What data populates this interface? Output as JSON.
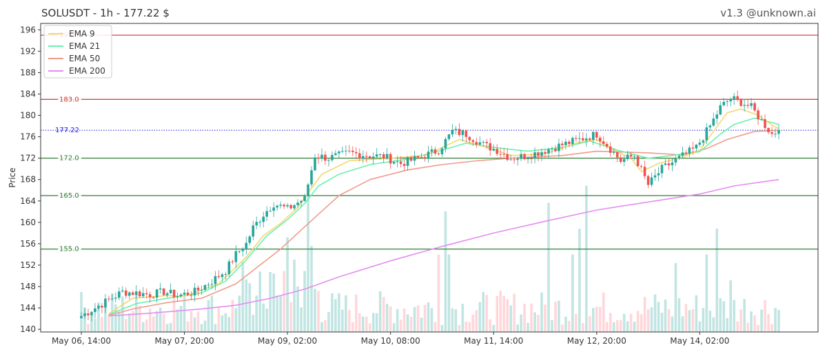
{
  "header": {
    "title": "SOLUSDT - 1h - 177.22 $",
    "credit": "v1.3 @unknown.ai"
  },
  "colors": {
    "up": "#26a69a",
    "down": "#ef5350",
    "vol_up": "#b2dfdb",
    "vol_down": "#ffcdd2",
    "ema9": "#f5d76e",
    "ema21": "#69f0ae",
    "ema50": "#ef9a8a",
    "ema200": "#e48cf0",
    "resistance": "#d32f2f",
    "support": "#2e7d32",
    "current": "#1a1ad6"
  },
  "chart_data": {
    "type": "candlestick",
    "title": "SOLUSDT - 1h - 177.22 $",
    "ylabel": "Price",
    "xlabel": "",
    "ylim": [
      139.5,
      197.2
    ],
    "y_ticks": [
      140,
      144,
      148,
      152,
      156,
      160,
      164,
      168,
      172,
      176,
      180,
      184,
      188,
      192,
      196
    ],
    "x_ticks": [
      {
        "bar": 0,
        "label": "May 06, 14:00"
      },
      {
        "bar": 30,
        "label": "May 07, 20:00"
      },
      {
        "bar": 60,
        "label": "May 09, 02:00"
      },
      {
        "bar": 90,
        "label": "May 10, 08:00"
      },
      {
        "bar": 120,
        "label": "May 11, 14:00"
      },
      {
        "bar": 150,
        "label": "May 12, 20:00"
      },
      {
        "bar": 180,
        "label": "May 14, 02:00"
      }
    ],
    "bar_count": 204,
    "anchors": [
      [
        0,
        142.5
      ],
      [
        8,
        145.5
      ],
      [
        12,
        147.0
      ],
      [
        16,
        146.8
      ],
      [
        20,
        146.5
      ],
      [
        24,
        147.0
      ],
      [
        28,
        146.3
      ],
      [
        33,
        147.0
      ],
      [
        38,
        149.0
      ],
      [
        42,
        151.0
      ],
      [
        45,
        154.0
      ],
      [
        48,
        156.0
      ],
      [
        50,
        159.0
      ],
      [
        53,
        161.5
      ],
      [
        56,
        163.5
      ],
      [
        60,
        162.5
      ],
      [
        65,
        164.5
      ],
      [
        68,
        172.5
      ],
      [
        72,
        172.0
      ],
      [
        78,
        173.0
      ],
      [
        84,
        172.5
      ],
      [
        88,
        172.3
      ],
      [
        93,
        171.0
      ],
      [
        98,
        172.0
      ],
      [
        104,
        173.5
      ],
      [
        108,
        177.0
      ],
      [
        112,
        176.5
      ],
      [
        117,
        174.5
      ],
      [
        121,
        173.5
      ],
      [
        125,
        172.0
      ],
      [
        130,
        172.5
      ],
      [
        135,
        173.5
      ],
      [
        140,
        174.5
      ],
      [
        145,
        175.5
      ],
      [
        150,
        176.5
      ],
      [
        153,
        174.5
      ],
      [
        157,
        171.5
      ],
      [
        161,
        172.5
      ],
      [
        165,
        167.0
      ],
      [
        169,
        170.0
      ],
      [
        174,
        172.0
      ],
      [
        179,
        174.0
      ],
      [
        183,
        178.0
      ],
      [
        186,
        181.5
      ],
      [
        189,
        183.2
      ],
      [
        192,
        182.5
      ],
      [
        195,
        181.5
      ],
      [
        198,
        179.0
      ],
      [
        201,
        176.5
      ],
      [
        203,
        177.22
      ]
    ],
    "ema9": [
      [
        8,
        142.9
      ],
      [
        15,
        145.8
      ],
      [
        25,
        146.3
      ],
      [
        30,
        146.2
      ],
      [
        40,
        148.5
      ],
      [
        48,
        153.5
      ],
      [
        53,
        157.5
      ],
      [
        58,
        159.8
      ],
      [
        63,
        162.8
      ],
      [
        66,
        165.5
      ],
      [
        70,
        169.0
      ],
      [
        78,
        171.5
      ],
      [
        90,
        172.0
      ],
      [
        100,
        172.5
      ],
      [
        105,
        174.0
      ],
      [
        110,
        175.5
      ],
      [
        118,
        174.0
      ],
      [
        125,
        172.5
      ],
      [
        135,
        172.8
      ],
      [
        145,
        175.0
      ],
      [
        150,
        175.5
      ],
      [
        155,
        173.5
      ],
      [
        160,
        172.0
      ],
      [
        163,
        169.5
      ],
      [
        168,
        171.0
      ],
      [
        175,
        172.2
      ],
      [
        180,
        173.5
      ],
      [
        184,
        177.0
      ],
      [
        188,
        180.5
      ],
      [
        192,
        181.2
      ],
      [
        197,
        180.0
      ],
      [
        201,
        178.2
      ],
      [
        203,
        177.5
      ]
    ],
    "ema21": [
      [
        8,
        142.8
      ],
      [
        12,
        143.8
      ],
      [
        16,
        144.8
      ],
      [
        25,
        145.8
      ],
      [
        35,
        146.8
      ],
      [
        42,
        149.0
      ],
      [
        48,
        153.0
      ],
      [
        54,
        157.5
      ],
      [
        60,
        160.5
      ],
      [
        65,
        163.5
      ],
      [
        69,
        166.8
      ],
      [
        75,
        169.0
      ],
      [
        84,
        170.8
      ],
      [
        95,
        171.8
      ],
      [
        105,
        173.5
      ],
      [
        112,
        174.8
      ],
      [
        120,
        174.0
      ],
      [
        130,
        173.3
      ],
      [
        140,
        174.0
      ],
      [
        148,
        175.2
      ],
      [
        156,
        173.5
      ],
      [
        165,
        172.0
      ],
      [
        172,
        172.5
      ],
      [
        180,
        173.2
      ],
      [
        186,
        176.5
      ],
      [
        190,
        178.3
      ],
      [
        196,
        179.5
      ],
      [
        203,
        178.3
      ]
    ],
    "ema50": [
      [
        8,
        142.6
      ],
      [
        15,
        143.8
      ],
      [
        25,
        145.0
      ],
      [
        35,
        145.8
      ],
      [
        45,
        148.5
      ],
      [
        52,
        152.0
      ],
      [
        58,
        155.0
      ],
      [
        63,
        158.0
      ],
      [
        69,
        161.5
      ],
      [
        75,
        165.0
      ],
      [
        84,
        168.0
      ],
      [
        95,
        169.8
      ],
      [
        105,
        170.8
      ],
      [
        115,
        171.5
      ],
      [
        125,
        172.0
      ],
      [
        140,
        172.5
      ],
      [
        150,
        173.3
      ],
      [
        165,
        173.0
      ],
      [
        175,
        172.6
      ],
      [
        182,
        173.8
      ],
      [
        188,
        175.5
      ],
      [
        196,
        177.0
      ],
      [
        203,
        177.2
      ]
    ],
    "ema200": [
      [
        8,
        142.5
      ],
      [
        20,
        143.0
      ],
      [
        35,
        143.8
      ],
      [
        45,
        144.5
      ],
      [
        55,
        145.8
      ],
      [
        65,
        147.5
      ],
      [
        75,
        149.8
      ],
      [
        90,
        152.8
      ],
      [
        105,
        155.5
      ],
      [
        120,
        158.0
      ],
      [
        135,
        160.2
      ],
      [
        150,
        162.3
      ],
      [
        165,
        163.8
      ],
      [
        180,
        165.3
      ],
      [
        190,
        166.8
      ],
      [
        203,
        168.0
      ]
    ],
    "levels": [
      {
        "value": 195.0,
        "label": "195.0",
        "kind": "resistance"
      },
      {
        "value": 183.0,
        "label": "183.0",
        "kind": "resistance"
      },
      {
        "value": 172.0,
        "label": "172.0",
        "kind": "support"
      },
      {
        "value": 165.0,
        "label": "165.0",
        "kind": "support"
      },
      {
        "value": 155.0,
        "label": "155.0",
        "kind": "support"
      }
    ],
    "current_price": {
      "value": 177.22,
      "label": "177.22"
    },
    "legend": {
      "position": "top-left",
      "items": [
        {
          "name": "EMA 9",
          "color_key": "ema9"
        },
        {
          "name": "EMA 21",
          "color_key": "ema21"
        },
        {
          "name": "EMA 50",
          "color_key": "ema50"
        },
        {
          "name": "EMA 200",
          "color_key": "ema200"
        }
      ]
    },
    "volume_scale_max": 1.0,
    "volume_highlights": [
      [
        60,
        0.55
      ],
      [
        62,
        0.42
      ],
      [
        66,
        0.8
      ],
      [
        67,
        0.5
      ],
      [
        104,
        0.45
      ],
      [
        106,
        0.7
      ],
      [
        107,
        0.45
      ],
      [
        136,
        0.75
      ],
      [
        143,
        0.45
      ],
      [
        145,
        0.6
      ],
      [
        147,
        0.85
      ],
      [
        173,
        0.4
      ],
      [
        182,
        0.45
      ],
      [
        185,
        0.6
      ],
      [
        189,
        0.3
      ]
    ]
  }
}
